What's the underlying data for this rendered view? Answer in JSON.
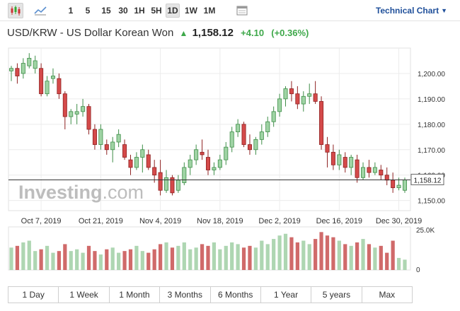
{
  "toolbar": {
    "icons": [
      "candlestick-icon",
      "area-chart-icon",
      "calendar-icon"
    ],
    "intervals": [
      {
        "label": "1"
      },
      {
        "label": "5"
      },
      {
        "label": "15"
      },
      {
        "label": "30"
      },
      {
        "label": "1H"
      },
      {
        "label": "5H"
      },
      {
        "label": "1D",
        "active": true
      },
      {
        "label": "1W"
      },
      {
        "label": "1M"
      }
    ],
    "technical_chart_label": "Technical Chart"
  },
  "header": {
    "instrument": "USD/KRW - US Dollar Korean Won",
    "direction_icon": "up-arrow-icon",
    "price": "1,158.12",
    "change": "+4.10",
    "change_pct": "(+0.36%)"
  },
  "colors": {
    "up": "#9fd3a4",
    "up_border": "#3e8e48",
    "down": "#d44a4a",
    "down_border": "#8f2222",
    "vol_up": "#aed6b2",
    "vol_down": "#d06a6a",
    "accent_green": "#3ea84a",
    "link": "#1f4f9a"
  },
  "watermark": {
    "brand": "Investing",
    "suffix": ".com"
  },
  "chart_data": {
    "type": "candlestick",
    "y_ticks": [
      "1,200.00",
      "1,190.00",
      "1,180.00",
      "1,170.00",
      "1,160.00",
      "1,150.00"
    ],
    "y_tick_values": [
      1200,
      1190,
      1180,
      1170,
      1160,
      1150
    ],
    "ylim": [
      1146,
      1210
    ],
    "x_ticks": [
      {
        "label": "Oct 7, 2019",
        "index": 5
      },
      {
        "label": "Oct 21, 2019",
        "index": 15
      },
      {
        "label": "Nov 4, 2019",
        "index": 25
      },
      {
        "label": "Nov 18, 2019",
        "index": 35
      },
      {
        "label": "Dec 2, 2019",
        "index": 45
      },
      {
        "label": "Dec 16, 2019",
        "index": 55
      },
      {
        "label": "Dec 30, 2019",
        "index": 65
      }
    ],
    "current_price": 1158.12,
    "current_price_label": "1,158.12",
    "volume_label": "25.0K",
    "volume_zero_label": "0",
    "volume_max": 25,
    "candles": [
      {
        "o": 1201,
        "h": 1203,
        "l": 1197,
        "c": 1202,
        "v": 13
      },
      {
        "o": 1202,
        "h": 1204,
        "l": 1196,
        "c": 1199,
        "v": 14
      },
      {
        "o": 1200,
        "h": 1206,
        "l": 1198,
        "c": 1204,
        "v": 16
      },
      {
        "o": 1203,
        "h": 1208,
        "l": 1202,
        "c": 1206,
        "v": 17
      },
      {
        "o": 1202,
        "h": 1207,
        "l": 1200,
        "c": 1205,
        "v": 11
      },
      {
        "o": 1202,
        "h": 1204,
        "l": 1191,
        "c": 1192,
        "v": 12
      },
      {
        "o": 1192,
        "h": 1199,
        "l": 1191,
        "c": 1197,
        "v": 14
      },
      {
        "o": 1198,
        "h": 1202,
        "l": 1196,
        "c": 1199,
        "v": 10
      },
      {
        "o": 1198,
        "h": 1200,
        "l": 1190,
        "c": 1192,
        "v": 11
      },
      {
        "o": 1192,
        "h": 1193,
        "l": 1178,
        "c": 1183,
        "v": 15
      },
      {
        "o": 1183,
        "h": 1186,
        "l": 1180,
        "c": 1185,
        "v": 11
      },
      {
        "o": 1184,
        "h": 1188,
        "l": 1180,
        "c": 1185,
        "v": 12
      },
      {
        "o": 1185,
        "h": 1190,
        "l": 1183,
        "c": 1187,
        "v": 10
      },
      {
        "o": 1187,
        "h": 1188,
        "l": 1176,
        "c": 1178,
        "v": 14
      },
      {
        "o": 1178,
        "h": 1180,
        "l": 1170,
        "c": 1172,
        "v": 11
      },
      {
        "o": 1172,
        "h": 1180,
        "l": 1170,
        "c": 1178,
        "v": 9
      },
      {
        "o": 1172,
        "h": 1174,
        "l": 1168,
        "c": 1170,
        "v": 12
      },
      {
        "o": 1170,
        "h": 1175,
        "l": 1165,
        "c": 1173,
        "v": 13
      },
      {
        "o": 1173,
        "h": 1178,
        "l": 1171,
        "c": 1176,
        "v": 10
      },
      {
        "o": 1172,
        "h": 1174,
        "l": 1166,
        "c": 1167,
        "v": 11
      },
      {
        "o": 1166,
        "h": 1168,
        "l": 1160,
        "c": 1163,
        "v": 12
      },
      {
        "o": 1163,
        "h": 1169,
        "l": 1162,
        "c": 1167,
        "v": 14
      },
      {
        "o": 1167,
        "h": 1172,
        "l": 1161,
        "c": 1170,
        "v": 11
      },
      {
        "o": 1168,
        "h": 1170,
        "l": 1162,
        "c": 1163,
        "v": 10
      },
      {
        "o": 1163,
        "h": 1166,
        "l": 1157,
        "c": 1160,
        "v": 12
      },
      {
        "o": 1161,
        "h": 1166,
        "l": 1152,
        "c": 1154,
        "v": 15
      },
      {
        "o": 1154,
        "h": 1162,
        "l": 1153,
        "c": 1159,
        "v": 16
      },
      {
        "o": 1159,
        "h": 1160,
        "l": 1152,
        "c": 1153,
        "v": 13
      },
      {
        "o": 1154,
        "h": 1160,
        "l": 1153,
        "c": 1158,
        "v": 14
      },
      {
        "o": 1157,
        "h": 1165,
        "l": 1156,
        "c": 1163,
        "v": 16
      },
      {
        "o": 1163,
        "h": 1168,
        "l": 1160,
        "c": 1166,
        "v": 12
      },
      {
        "o": 1166,
        "h": 1172,
        "l": 1164,
        "c": 1170,
        "v": 13
      },
      {
        "o": 1169,
        "h": 1174,
        "l": 1166,
        "c": 1168,
        "v": 15
      },
      {
        "o": 1167,
        "h": 1170,
        "l": 1160,
        "c": 1162,
        "v": 14
      },
      {
        "o": 1162,
        "h": 1165,
        "l": 1160,
        "c": 1163,
        "v": 16
      },
      {
        "o": 1163,
        "h": 1168,
        "l": 1162,
        "c": 1166,
        "v": 12
      },
      {
        "o": 1166,
        "h": 1173,
        "l": 1164,
        "c": 1171,
        "v": 14
      },
      {
        "o": 1171,
        "h": 1179,
        "l": 1169,
        "c": 1177,
        "v": 16
      },
      {
        "o": 1177,
        "h": 1182,
        "l": 1175,
        "c": 1180,
        "v": 15
      },
      {
        "o": 1180,
        "h": 1181,
        "l": 1171,
        "c": 1172,
        "v": 13
      },
      {
        "o": 1172,
        "h": 1176,
        "l": 1168,
        "c": 1170,
        "v": 14
      },
      {
        "o": 1170,
        "h": 1175,
        "l": 1168,
        "c": 1174,
        "v": 13
      },
      {
        "o": 1174,
        "h": 1180,
        "l": 1172,
        "c": 1177,
        "v": 17
      },
      {
        "o": 1177,
        "h": 1183,
        "l": 1175,
        "c": 1181,
        "v": 15
      },
      {
        "o": 1181,
        "h": 1187,
        "l": 1179,
        "c": 1185,
        "v": 18
      },
      {
        "o": 1185,
        "h": 1192,
        "l": 1183,
        "c": 1190,
        "v": 20
      },
      {
        "o": 1190,
        "h": 1195,
        "l": 1187,
        "c": 1194,
        "v": 21
      },
      {
        "o": 1194,
        "h": 1197,
        "l": 1189,
        "c": 1192,
        "v": 19
      },
      {
        "o": 1192,
        "h": 1195,
        "l": 1186,
        "c": 1188,
        "v": 16
      },
      {
        "o": 1188,
        "h": 1193,
        "l": 1185,
        "c": 1191,
        "v": 17
      },
      {
        "o": 1191,
        "h": 1196,
        "l": 1188,
        "c": 1192,
        "v": 15
      },
      {
        "o": 1192,
        "h": 1197,
        "l": 1188,
        "c": 1189,
        "v": 18
      },
      {
        "o": 1189,
        "h": 1191,
        "l": 1170,
        "c": 1172,
        "v": 22
      },
      {
        "o": 1172,
        "h": 1175,
        "l": 1163,
        "c": 1169,
        "v": 20
      },
      {
        "o": 1169,
        "h": 1172,
        "l": 1162,
        "c": 1164,
        "v": 19
      },
      {
        "o": 1164,
        "h": 1170,
        "l": 1162,
        "c": 1168,
        "v": 17
      },
      {
        "o": 1167,
        "h": 1169,
        "l": 1161,
        "c": 1163,
        "v": 15
      },
      {
        "o": 1163,
        "h": 1168,
        "l": 1160,
        "c": 1167,
        "v": 14
      },
      {
        "o": 1166,
        "h": 1168,
        "l": 1157,
        "c": 1159,
        "v": 16
      },
      {
        "o": 1159,
        "h": 1165,
        "l": 1158,
        "c": 1163,
        "v": 18
      },
      {
        "o": 1163,
        "h": 1166,
        "l": 1159,
        "c": 1161,
        "v": 15
      },
      {
        "o": 1161,
        "h": 1165,
        "l": 1160,
        "c": 1163,
        "v": 13
      },
      {
        "o": 1162,
        "h": 1164,
        "l": 1158,
        "c": 1160,
        "v": 14
      },
      {
        "o": 1160,
        "h": 1163,
        "l": 1156,
        "c": 1158,
        "v": 10
      },
      {
        "o": 1158,
        "h": 1161,
        "l": 1153,
        "c": 1155,
        "v": 17
      },
      {
        "o": 1155,
        "h": 1159,
        "l": 1154,
        "c": 1156,
        "v": 7
      },
      {
        "o": 1154,
        "h": 1159,
        "l": 1153,
        "c": 1158.12,
        "v": 6
      }
    ]
  },
  "ranges": [
    "1 Day",
    "1 Week",
    "1 Month",
    "3 Months",
    "6 Months",
    "1 Year",
    "5 years",
    "Max"
  ]
}
